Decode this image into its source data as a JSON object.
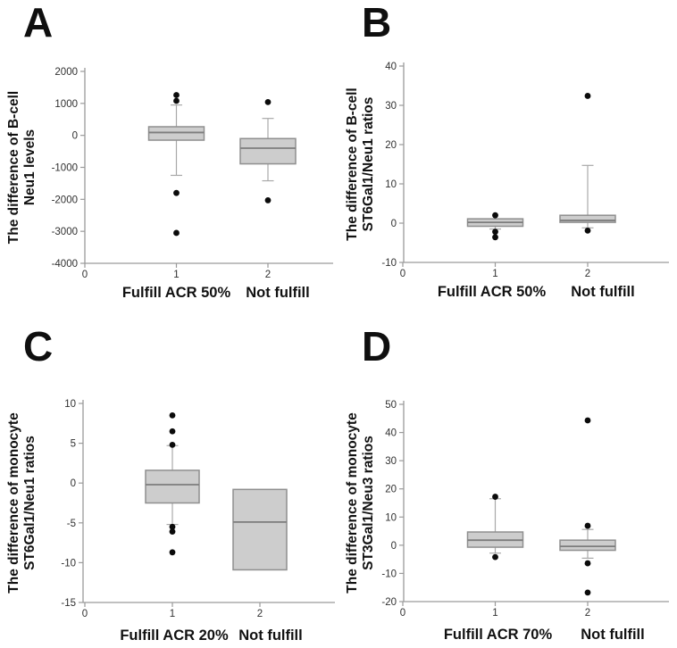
{
  "colors": {
    "box_fill": "#cdcdcd",
    "box_border": "#8f8f8f",
    "median_line": "#7d7d7d",
    "whisker": "#a9a9a9",
    "axis": "#9a9a9a",
    "dot": "#0b0b0b",
    "text": "#111111"
  },
  "chart_data": [
    {
      "type": "box",
      "panel_label": "A",
      "ylabel": "The difference of B-cell Neu1 levels",
      "ylabel_lines": [
        "The difference of B-cell",
        "Neu1 levels"
      ],
      "group_labels": [
        "Fulfill ACR 50%",
        "Not fulfill"
      ],
      "ylim": [
        -4000,
        2000
      ],
      "yticks": [
        2000,
        1000,
        0,
        -1000,
        -2000,
        -3000,
        -4000
      ],
      "xticks": [
        0,
        1,
        2
      ],
      "categories": [
        "1",
        "2"
      ],
      "grid": false,
      "groups": [
        {
          "x": 1,
          "whisker_low": -1250,
          "q1": -150,
          "median": 90,
          "q3": 270,
          "whisker_high": 950,
          "outliers": [
            1260,
            1080,
            -1800,
            -3050
          ]
        },
        {
          "x": 2,
          "whisker_low": -1420,
          "q1": -890,
          "median": -400,
          "q3": -100,
          "whisker_high": 530,
          "outliers": [
            1040,
            -2030
          ]
        }
      ]
    },
    {
      "type": "box",
      "panel_label": "B",
      "ylabel": "The difference of B-cell ST6Gal1/Neu1 ratios",
      "ylabel_lines": [
        "The difference of B-cell",
        "ST6Gal1/Neu1 ratios"
      ],
      "group_labels": [
        "Fulfill ACR 50%",
        "Not fulfill"
      ],
      "ylim": [
        -10,
        40
      ],
      "yticks": [
        40,
        30,
        20,
        10,
        0,
        -10
      ],
      "xticks": [
        0,
        1,
        2
      ],
      "categories": [
        "1",
        "2"
      ],
      "grid": false,
      "groups": [
        {
          "x": 1,
          "whisker_low": -1.5,
          "q1": -0.8,
          "median": 0.2,
          "q3": 1.1,
          "whisker_high": 1.1,
          "outliers": [
            2.0,
            -2.2,
            -3.6
          ]
        },
        {
          "x": 2,
          "whisker_low": -1.2,
          "q1": 0.2,
          "median": 0.7,
          "q3": 2.0,
          "whisker_high": 14.7,
          "outliers": [
            32.4,
            -1.9
          ]
        }
      ]
    },
    {
      "type": "box",
      "panel_label": "C",
      "ylabel": "The difference of monocyte ST6Gal1/Neu1 ratios",
      "ylabel_lines": [
        "The difference of monocyte",
        "ST6Gal1/Neu1 ratios"
      ],
      "group_labels": [
        "Fulfill ACR 20%",
        "Not fulfill"
      ],
      "ylim": [
        -15,
        10
      ],
      "yticks": [
        10,
        5,
        0,
        -5,
        -10,
        -15
      ],
      "xticks": [
        0,
        1,
        2
      ],
      "categories": [
        "1",
        "2"
      ],
      "grid": false,
      "groups": [
        {
          "x": 1,
          "whisker_low": -5.2,
          "q1": -2.5,
          "median": -0.2,
          "q3": 1.6,
          "whisker_high": 4.7,
          "outliers": [
            8.5,
            6.5,
            4.8,
            -5.5,
            -6.1,
            -8.7
          ]
        },
        {
          "x": 2,
          "whisker_low": -10.9,
          "q1": -10.9,
          "median": -4.9,
          "q3": -0.8,
          "whisker_high": -0.8,
          "outliers": []
        }
      ]
    },
    {
      "type": "box",
      "panel_label": "D",
      "ylabel": "The difference of monocyte ST3Gal1/Neu3 ratios",
      "ylabel_lines": [
        "The difference of monocyte",
        "ST3Gal1/Neu3 ratios"
      ],
      "group_labels": [
        "Fulfill ACR 70%",
        "Not fulfill"
      ],
      "ylim": [
        -20,
        50
      ],
      "yticks": [
        50,
        40,
        30,
        20,
        10,
        0,
        -10,
        -20
      ],
      "xticks": [
        0,
        1,
        2
      ],
      "categories": [
        "1",
        "2"
      ],
      "grid": false,
      "groups": [
        {
          "x": 1,
          "whisker_low": -2.8,
          "q1": -0.7,
          "median": 1.8,
          "q3": 4.7,
          "whisker_high": 16.5,
          "outliers": [
            17.2,
            -4.2
          ]
        },
        {
          "x": 2,
          "whisker_low": -4.6,
          "q1": -1.8,
          "median": -0.4,
          "q3": 1.8,
          "whisker_high": 5.6,
          "outliers": [
            44.3,
            6.9,
            -6.4,
            -16.8
          ]
        }
      ]
    }
  ]
}
